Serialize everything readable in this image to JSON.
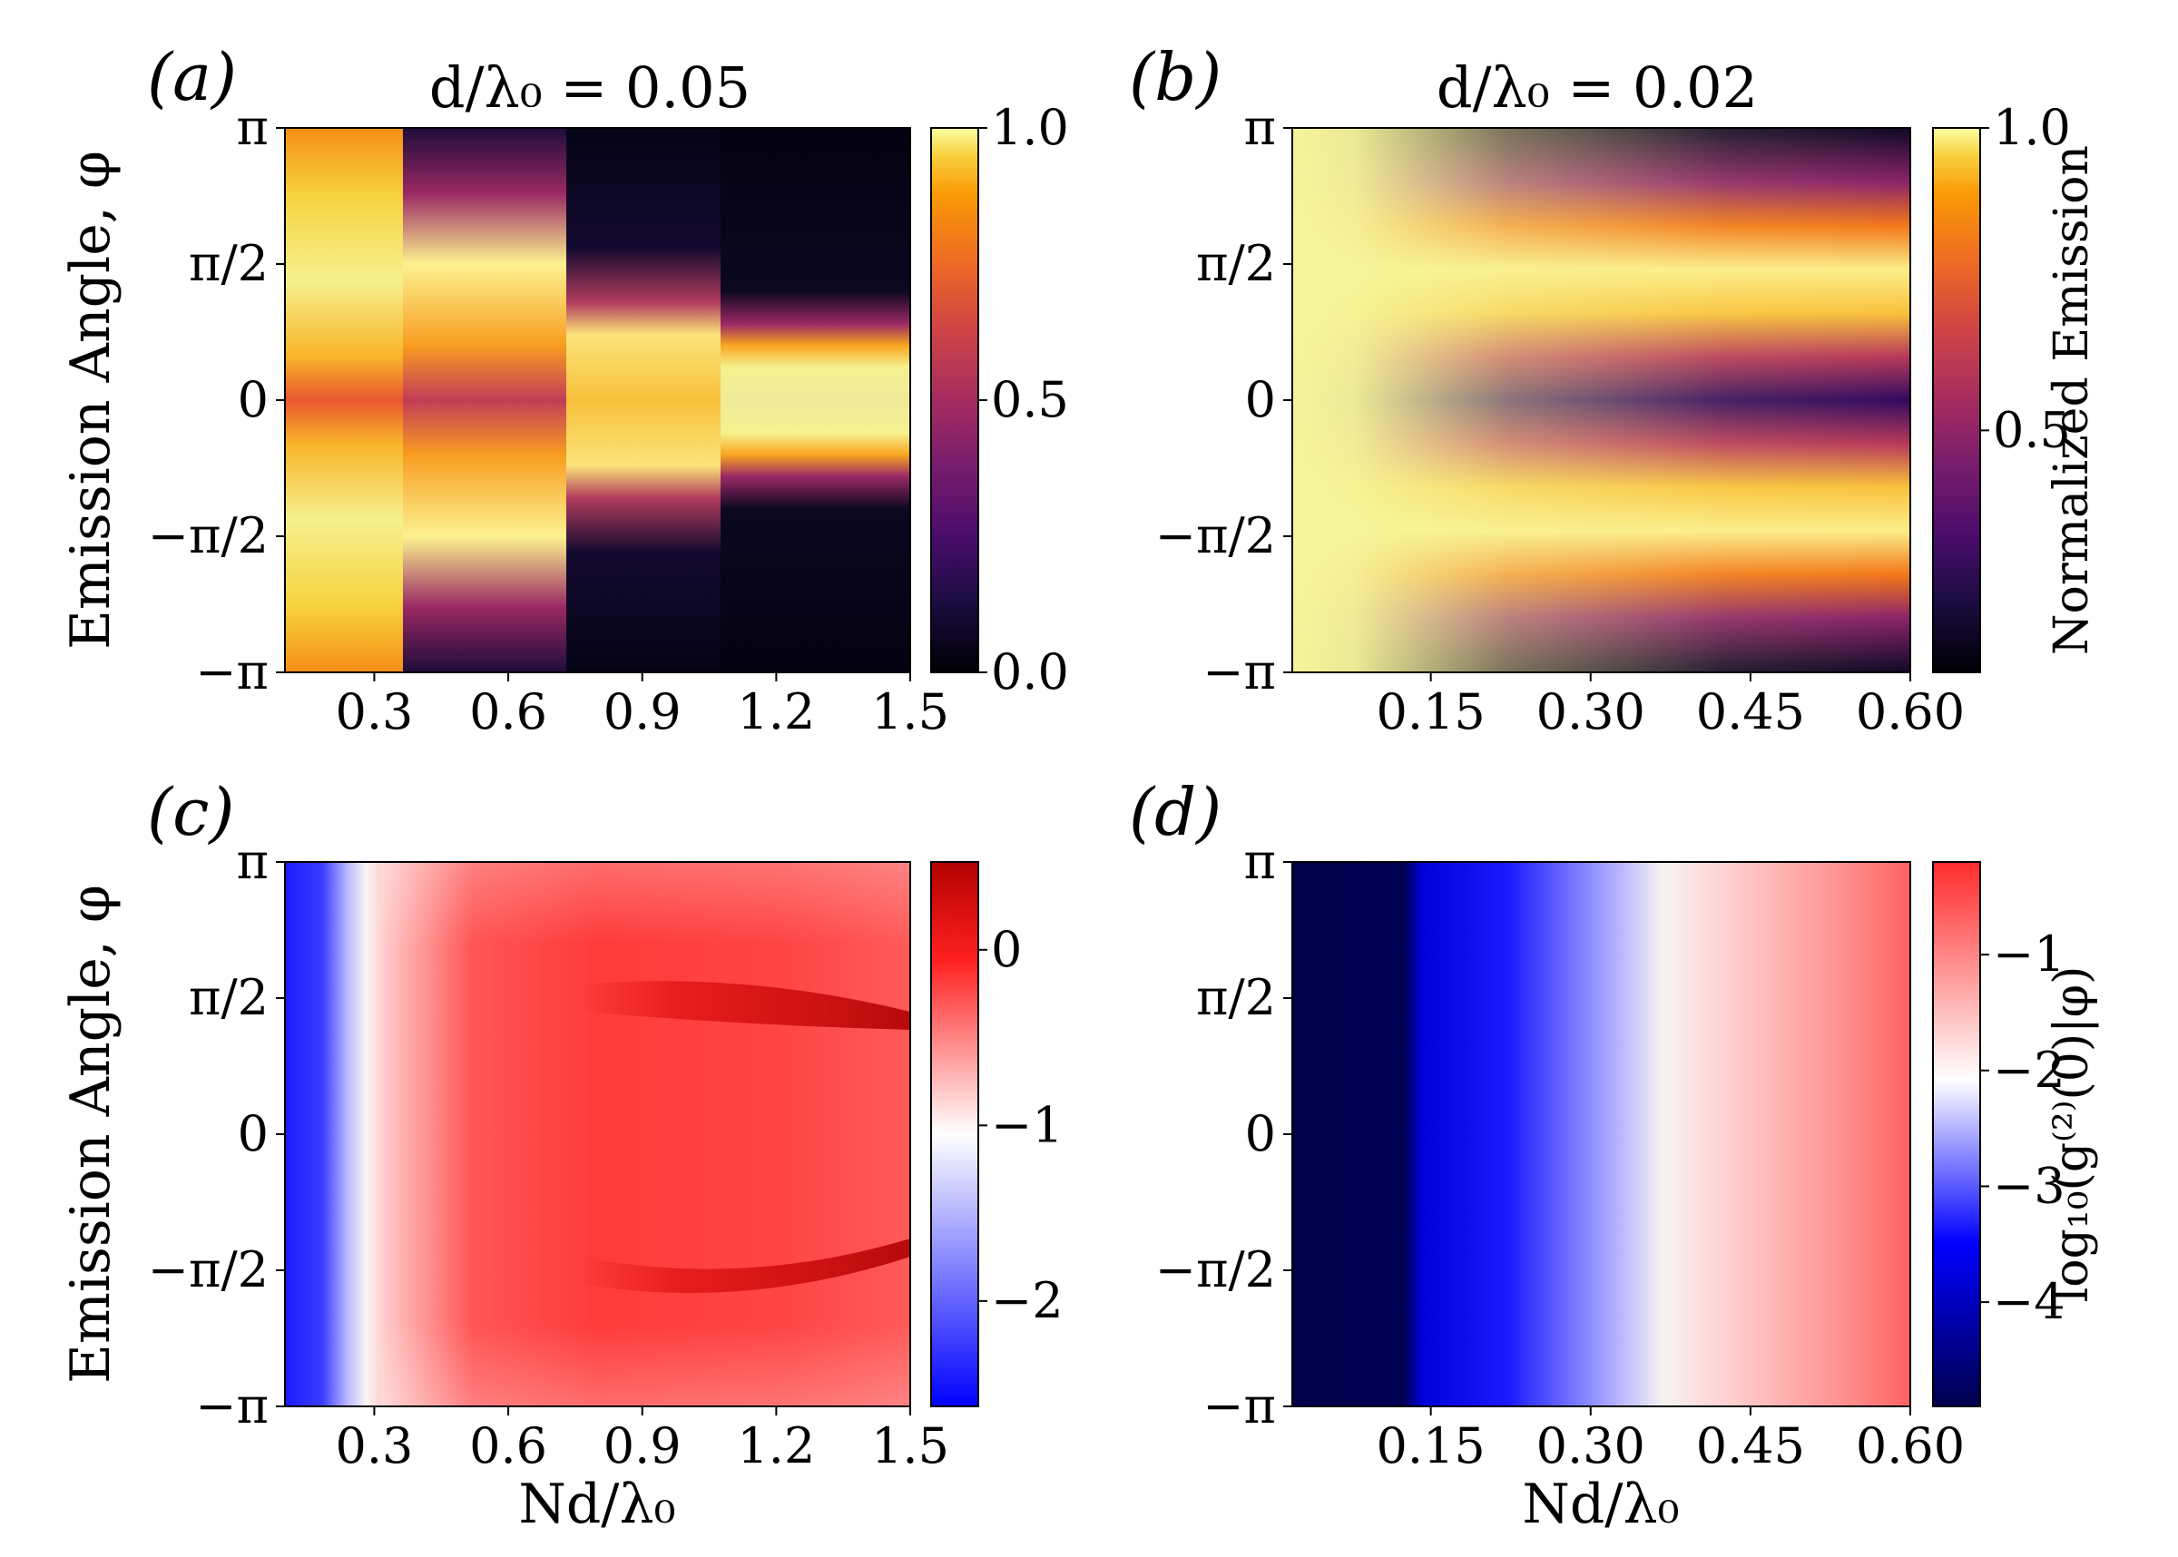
{
  "chart_data": [
    {
      "panel_label": "(a)",
      "title": "d/λ₀ = 0.05",
      "type": "heatmap",
      "colormap": "inferno",
      "xlabel": "",
      "ylabel": "Emission Angle, φ",
      "xlim": [
        0.1,
        1.5
      ],
      "ylim": [
        -3.14159,
        3.14159
      ],
      "x_ticks": [
        "0.3",
        "0.6",
        "0.9",
        "1.2",
        "1.5"
      ],
      "y_ticks": [
        "−π",
        "−π/2",
        "0",
        "π/2",
        "π"
      ],
      "colorbar": {
        "label": "",
        "range": [
          0.0,
          1.0
        ],
        "ticks": [
          "0.0",
          "0.5",
          "1.0"
        ]
      },
      "features": [
        {
          "description": "bright lobes at φ≈±π/2 converging toward φ≈±0.4 for Nd/λ0 > 0.9",
          "value": 1.0
        },
        {
          "description": "minimum near φ=0 at Nd/λ0≈0.45",
          "value": 0.5
        },
        {
          "description": "dark region |φ|>π/2 for Nd/λ0 > 0.9",
          "value": 0.0
        }
      ]
    },
    {
      "panel_label": "(b)",
      "title": "d/λ₀ = 0.02",
      "type": "heatmap",
      "colormap": "inferno",
      "xlabel": "",
      "ylabel": "",
      "xlim": [
        0.02,
        0.6
      ],
      "ylim": [
        -3.14159,
        3.14159
      ],
      "x_ticks": [
        "0.15",
        "0.30",
        "0.45",
        "0.60"
      ],
      "y_ticks": [
        "−π",
        "−π/2",
        "0",
        "π/2",
        "π"
      ],
      "colorbar": {
        "label": "Normalized Emission",
        "range": [
          0.1,
          1.0
        ],
        "ticks": [
          "0.5",
          "1.0"
        ]
      },
      "features": [
        {
          "description": "bright lobes at φ≈±π/2 across all Nd/λ0",
          "value": 1.0
        },
        {
          "description": "dip at φ=0 deepening with Nd/λ0",
          "value": 0.3
        }
      ]
    },
    {
      "panel_label": "(c)",
      "title": "",
      "type": "heatmap",
      "colormap": "bwr",
      "xlabel": "Nd/λ₀",
      "ylabel": "Emission Angle, φ",
      "xlim": [
        0.1,
        1.5
      ],
      "ylim": [
        -3.14159,
        3.14159
      ],
      "x_ticks": [
        "0.3",
        "0.6",
        "0.9",
        "1.2",
        "1.5"
      ],
      "y_ticks": [
        "−π",
        "−π/2",
        "0",
        "π/2",
        "π"
      ],
      "colorbar": {
        "label": "",
        "range": [
          -2.6,
          0.5
        ],
        "ticks": [
          "−2",
          "−1",
          "0"
        ]
      },
      "features": [
        {
          "description": "blue band at small Nd/λ0 (≈0.1–0.2)",
          "value": -2.5
        },
        {
          "description": "white transition near Nd/λ0≈0.27",
          "value": -1.0
        },
        {
          "description": "dark red streaks at φ≈±π/2 for Nd/λ0 > 0.9",
          "value": 0.4
        }
      ]
    },
    {
      "panel_label": "(d)",
      "title": "",
      "type": "heatmap",
      "colormap": "seismic",
      "xlabel": "Nd/λ₀",
      "ylabel": "",
      "xlim": [
        0.02,
        0.6
      ],
      "ylim": [
        -3.14159,
        3.14159
      ],
      "x_ticks": [
        "0.15",
        "0.30",
        "0.45",
        "0.60"
      ],
      "y_ticks": [
        "−π",
        "−π/2",
        "0",
        "π/2",
        "π"
      ],
      "colorbar": {
        "label": "log₁₀(g⁽²⁾(0)|φ)",
        "range": [
          -4.9,
          -0.2
        ],
        "ticks": [
          "−4",
          "−3",
          "−2",
          "−1"
        ]
      },
      "features": [
        {
          "description": "dark navy for Nd/λ0 < 0.15",
          "value": -4.8
        },
        {
          "description": "blue to white transition Nd/λ0≈0.2–0.4",
          "value": -1.0
        },
        {
          "description": "light red at large Nd/λ0 near φ=0",
          "value": -0.4
        }
      ]
    }
  ]
}
